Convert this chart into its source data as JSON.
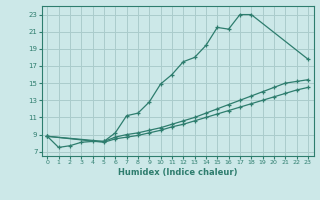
{
  "xlabel": "Humidex (Indice chaleur)",
  "bg_color": "#cce8e8",
  "grid_color": "#aacccc",
  "line_color": "#2e7d6e",
  "xlim": [
    -0.5,
    23.5
  ],
  "ylim": [
    6.5,
    24
  ],
  "xticks": [
    0,
    1,
    2,
    3,
    4,
    5,
    6,
    7,
    8,
    9,
    10,
    11,
    12,
    13,
    14,
    15,
    16,
    17,
    18,
    19,
    20,
    21,
    22,
    23
  ],
  "yticks": [
    7,
    9,
    11,
    13,
    15,
    17,
    19,
    21,
    23
  ],
  "line1_x": [
    0,
    1,
    2,
    3,
    4,
    5,
    6,
    7,
    8,
    9,
    10,
    11,
    12,
    13,
    14,
    15,
    16,
    17,
    18,
    23
  ],
  "line1_y": [
    8.8,
    7.5,
    7.7,
    8.1,
    8.2,
    8.2,
    9.2,
    11.2,
    11.5,
    12.8,
    14.9,
    16.0,
    17.5,
    18.0,
    19.4,
    21.5,
    21.3,
    23.0,
    23.0,
    17.8
  ],
  "line2_x": [
    0,
    5,
    6,
    7,
    8,
    9,
    10,
    11,
    12,
    13,
    14,
    15,
    16,
    17,
    18,
    19,
    20,
    21,
    22,
    23
  ],
  "line2_y": [
    8.8,
    8.2,
    8.7,
    9.0,
    9.2,
    9.5,
    9.8,
    10.2,
    10.6,
    11.0,
    11.5,
    12.0,
    12.5,
    13.0,
    13.5,
    14.0,
    14.5,
    15.0,
    15.2,
    15.4
  ],
  "line3_x": [
    0,
    5,
    6,
    7,
    8,
    9,
    10,
    11,
    12,
    13,
    14,
    15,
    16,
    17,
    18,
    19,
    20,
    21,
    22,
    23
  ],
  "line3_y": [
    8.8,
    8.1,
    8.5,
    8.7,
    8.9,
    9.2,
    9.5,
    9.9,
    10.2,
    10.6,
    11.0,
    11.4,
    11.8,
    12.2,
    12.6,
    13.0,
    13.4,
    13.8,
    14.2,
    14.5
  ]
}
